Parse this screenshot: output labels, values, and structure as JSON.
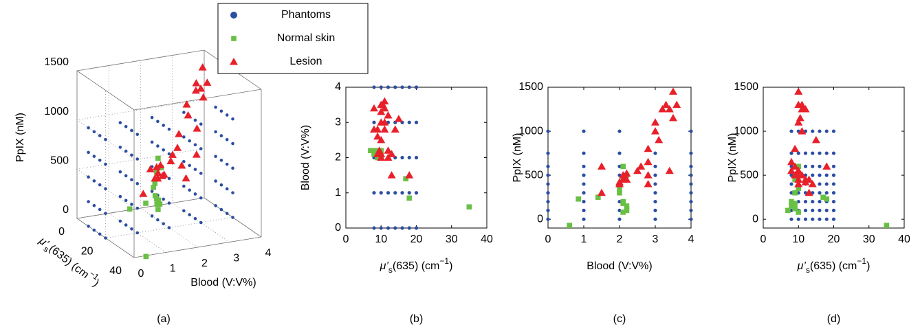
{
  "chart_data": [
    {
      "type": "scatter3d",
      "caption": "(a)",
      "xlabel": [
        "μ’",
        "s",
        "(635) (cm",
        "−1",
        ")"
      ],
      "ylabel": "Blood (V:V%)",
      "zlabel": "PpIX (nM)",
      "xlim": [
        0,
        40
      ],
      "ylim": [
        0,
        4
      ],
      "zlim": [
        0,
        1500
      ],
      "xticks": [
        0,
        20,
        40
      ],
      "yticks": [
        0,
        1,
        2,
        3,
        4
      ],
      "zticks": [
        0,
        500,
        1000,
        1500
      ],
      "grid": true,
      "series": [
        {
          "name": "Phantoms",
          "color": "#2b4ea2",
          "marker": "circle",
          "x": [
            8,
            8,
            8,
            8,
            8,
            8,
            8,
            8,
            8,
            8,
            8,
            8,
            8,
            8,
            8,
            8,
            8,
            8,
            8,
            8,
            8,
            8,
            8,
            8,
            8,
            12,
            12,
            12,
            12,
            12,
            12,
            12,
            12,
            12,
            12,
            12,
            12,
            12,
            12,
            12,
            12,
            12,
            12,
            12,
            12,
            12,
            12,
            12,
            12,
            12,
            16,
            16,
            16,
            16,
            16,
            16,
            16,
            16,
            16,
            16,
            16,
            16,
            16,
            16,
            16,
            16,
            16,
            16,
            16,
            16,
            16,
            16,
            16,
            16,
            16,
            20,
            20,
            20,
            20,
            20,
            20,
            20,
            20,
            20,
            20,
            20,
            20,
            20,
            20,
            20,
            20,
            20,
            20,
            20,
            20,
            20,
            20,
            20,
            20,
            20
          ],
          "y": [
            0,
            0,
            0,
            0,
            0,
            1,
            1,
            1,
            1,
            1,
            2,
            2,
            2,
            2,
            2,
            3,
            3,
            3,
            3,
            3,
            4,
            4,
            4,
            4,
            4,
            0,
            0,
            0,
            0,
            0,
            1,
            1,
            1,
            1,
            1,
            2,
            2,
            2,
            2,
            2,
            3,
            3,
            3,
            3,
            3,
            4,
            4,
            4,
            4,
            4,
            0,
            0,
            0,
            0,
            0,
            1,
            1,
            1,
            1,
            1,
            2,
            2,
            2,
            2,
            2,
            3,
            3,
            3,
            3,
            3,
            4,
            4,
            4,
            4,
            4,
            0,
            0,
            0,
            0,
            0,
            1,
            1,
            1,
            1,
            1,
            2,
            2,
            2,
            2,
            2,
            3,
            3,
            3,
            3,
            3,
            4,
            4,
            4,
            4,
            4
          ],
          "z": [
            0,
            250,
            500,
            750,
            1000,
            0,
            250,
            500,
            750,
            1000,
            0,
            250,
            500,
            750,
            1000,
            0,
            250,
            500,
            750,
            1000,
            0,
            250,
            500,
            750,
            1000,
            0,
            250,
            500,
            750,
            1000,
            0,
            250,
            500,
            750,
            1000,
            0,
            250,
            500,
            750,
            1000,
            0,
            250,
            500,
            750,
            1000,
            0,
            250,
            500,
            750,
            1000,
            0,
            250,
            500,
            750,
            1000,
            0,
            250,
            500,
            750,
            1000,
            0,
            250,
            500,
            750,
            1000,
            0,
            250,
            500,
            750,
            1000,
            0,
            250,
            500,
            750,
            1000,
            0,
            250,
            500,
            750,
            1000,
            0,
            250,
            500,
            750,
            1000,
            0,
            250,
            500,
            750,
            1000,
            0,
            250,
            500,
            750,
            1000,
            0,
            250,
            500,
            750,
            1000
          ]
        },
        {
          "name": "Normal skin",
          "color": "#6abf45",
          "marker": "square",
          "x": [
            7,
            8,
            8,
            9,
            9,
            10,
            10,
            10,
            17,
            18,
            35,
            9,
            10,
            9
          ],
          "y": [
            2.2,
            2.2,
            2.1,
            2.1,
            2.2,
            2.1,
            2.1,
            2.0,
            1.4,
            0.85,
            0.6,
            2.1,
            2.2,
            2.0
          ],
          "z": [
            100,
            150,
            200,
            180,
            120,
            80,
            600,
            350,
            250,
            230,
            -70,
            450,
            500,
            300
          ]
        },
        {
          "name": "Lesion",
          "color": "#e8202a",
          "marker": "triangle",
          "x": [
            10,
            11,
            10,
            12,
            10,
            11,
            15,
            9,
            8,
            9,
            10,
            11,
            12,
            10,
            13,
            14,
            18,
            11,
            9,
            10,
            12,
            8,
            9.5,
            10.5,
            13
          ],
          "y": [
            3.5,
            3.6,
            3.3,
            3.2,
            3.0,
            3.0,
            3.1,
            2.8,
            2.8,
            2.6,
            2.5,
            2.8,
            2.2,
            2.1,
            2.1,
            2.8,
            1.5,
            3.4,
            2.1,
            2.0,
            2.0,
            3.4,
            2.2,
            3.5,
            1.5
          ],
          "z": [
            1450,
            1300,
            1300,
            1250,
            1100,
            1000,
            900,
            800,
            650,
            600,
            550,
            500,
            450,
            450,
            450,
            400,
            600,
            1250,
            500,
            400,
            420,
            550,
            520,
            1150,
            300
          ]
        }
      ]
    },
    {
      "type": "scatter",
      "caption": "(b)",
      "xlabel": [
        "μ’",
        "s",
        "(635) (cm",
        "−1",
        ")"
      ],
      "ylabel": "Blood (V:V%)",
      "xlim": [
        0,
        40
      ],
      "ylim": [
        0,
        4
      ],
      "xticks": [
        0,
        10,
        20,
        30,
        40
      ],
      "yticks": [
        0,
        1,
        2,
        3,
        4
      ],
      "series": [
        {
          "color": "#2b4ea2",
          "marker": "circle",
          "x": [
            8,
            10,
            12,
            14,
            16,
            18,
            20,
            8,
            10,
            12,
            14,
            16,
            18,
            20,
            8,
            10,
            12,
            14,
            16,
            18,
            20,
            8,
            10,
            12,
            14,
            16,
            18,
            20,
            8,
            10,
            12,
            14,
            16,
            18,
            20
          ],
          "y": [
            0,
            0,
            0,
            0,
            0,
            0,
            0,
            1,
            1,
            1,
            1,
            1,
            1,
            1,
            2,
            2,
            2,
            2,
            2,
            2,
            2,
            3,
            3,
            3,
            3,
            3,
            3,
            3,
            4,
            4,
            4,
            4,
            4,
            4,
            4
          ]
        },
        {
          "color": "#6abf45",
          "marker": "square",
          "x": [
            7,
            8,
            8,
            9,
            9,
            10,
            10,
            10,
            17,
            18,
            35,
            9,
            10,
            9
          ],
          "y": [
            2.2,
            2.2,
            2.1,
            2.1,
            2.2,
            2.1,
            2.1,
            2.0,
            1.4,
            0.85,
            0.6,
            2.1,
            2.2,
            2.0
          ]
        },
        {
          "color": "#e8202a",
          "marker": "triangle",
          "x": [
            10,
            11,
            10,
            12,
            10,
            11,
            15,
            9,
            8,
            9,
            10,
            11,
            12,
            10,
            13,
            14,
            18,
            11,
            9,
            10,
            12,
            8,
            9.5,
            10.5,
            13
          ],
          "y": [
            3.5,
            3.6,
            3.3,
            3.2,
            3.0,
            3.0,
            3.1,
            2.8,
            2.8,
            2.6,
            2.5,
            2.8,
            2.2,
            2.1,
            2.1,
            2.8,
            1.5,
            3.4,
            2.1,
            2.0,
            2.0,
            3.4,
            2.2,
            3.5,
            1.5
          ]
        }
      ]
    },
    {
      "type": "scatter",
      "caption": "(c)",
      "xlabel": "Blood (V:V%)",
      "ylabel": "PpIX (nM)",
      "xlim": [
        0,
        4
      ],
      "ylim": [
        -100,
        1500
      ],
      "xticks": [
        0,
        1,
        2,
        3,
        4
      ],
      "yticks": [
        0,
        500,
        1000,
        1500
      ],
      "series": [
        {
          "color": "#2b4ea2",
          "marker": "circle",
          "x": [
            0,
            0,
            0,
            0,
            0,
            0,
            0,
            0,
            0,
            1,
            1,
            1,
            1,
            1,
            1,
            1,
            1,
            1,
            2,
            2,
            2,
            2,
            2,
            2,
            2,
            2,
            2,
            3,
            3,
            3,
            3,
            3,
            3,
            3,
            3,
            3,
            4,
            4,
            4,
            4,
            4,
            4,
            4,
            4,
            4
          ],
          "y": [
            0,
            100,
            200,
            300,
            400,
            500,
            600,
            750,
            1000,
            0,
            100,
            200,
            300,
            400,
            500,
            600,
            750,
            1000,
            0,
            100,
            200,
            300,
            400,
            500,
            600,
            750,
            1000,
            0,
            100,
            200,
            300,
            400,
            500,
            600,
            750,
            1000,
            0,
            100,
            200,
            300,
            400,
            500,
            600,
            750,
            1000
          ]
        },
        {
          "color": "#6abf45",
          "marker": "square",
          "x": [
            2.2,
            2.2,
            2.1,
            2.1,
            2.2,
            2.1,
            2.1,
            2.0,
            1.4,
            0.85,
            0.6,
            2.1,
            2.2,
            2.0
          ],
          "y": [
            100,
            150,
            200,
            180,
            120,
            80,
            600,
            350,
            250,
            230,
            -70,
            450,
            500,
            300
          ]
        },
        {
          "color": "#e8202a",
          "marker": "triangle",
          "x": [
            3.5,
            3.6,
            3.3,
            3.2,
            3.0,
            3.0,
            3.1,
            2.8,
            2.8,
            2.6,
            2.5,
            2.8,
            2.2,
            2.1,
            2.1,
            2.8,
            1.5,
            3.4,
            2.1,
            2.0,
            2.0,
            3.4,
            2.2,
            3.5,
            1.5
          ],
          "y": [
            1450,
            1300,
            1300,
            1250,
            1100,
            1000,
            900,
            800,
            650,
            600,
            550,
            500,
            450,
            450,
            450,
            400,
            600,
            1250,
            500,
            400,
            420,
            550,
            520,
            1150,
            300
          ]
        }
      ]
    },
    {
      "type": "scatter",
      "caption": "(d)",
      "xlabel": [
        "μ’",
        "s",
        "(635) (cm",
        "−1",
        ")"
      ],
      "ylabel": "PpIX (nM)",
      "xlim": [
        0,
        40
      ],
      "ylim": [
        -100,
        1500
      ],
      "xticks": [
        0,
        10,
        20,
        30,
        40
      ],
      "yticks": [
        0,
        500,
        1000,
        1500
      ],
      "series": [
        {
          "color": "#2b4ea2",
          "marker": "circle",
          "x": [
            8,
            8,
            8,
            8,
            8,
            8,
            8,
            8,
            8,
            10,
            10,
            10,
            10,
            10,
            10,
            10,
            10,
            10,
            12,
            12,
            12,
            12,
            12,
            12,
            12,
            12,
            12,
            14,
            14,
            14,
            14,
            14,
            14,
            14,
            14,
            14,
            16,
            16,
            16,
            16,
            16,
            16,
            16,
            16,
            16,
            18,
            18,
            18,
            18,
            18,
            18,
            18,
            18,
            18,
            20,
            20,
            20,
            20,
            20,
            20,
            20,
            20,
            20
          ],
          "y": [
            0,
            100,
            200,
            300,
            400,
            500,
            600,
            750,
            1000,
            0,
            100,
            200,
            300,
            400,
            500,
            600,
            750,
            1000,
            0,
            100,
            200,
            300,
            400,
            500,
            600,
            750,
            1000,
            0,
            100,
            200,
            300,
            400,
            500,
            600,
            750,
            1000,
            0,
            100,
            200,
            300,
            400,
            500,
            600,
            750,
            1000,
            0,
            100,
            200,
            300,
            400,
            500,
            600,
            750,
            1000,
            0,
            100,
            200,
            300,
            400,
            500,
            600,
            750,
            1000
          ]
        },
        {
          "color": "#6abf45",
          "marker": "square",
          "x": [
            7,
            8,
            8,
            9,
            9,
            10,
            10,
            10,
            17,
            18,
            35,
            9,
            10,
            9
          ],
          "y": [
            100,
            150,
            200,
            180,
            120,
            80,
            600,
            350,
            250,
            230,
            -70,
            450,
            500,
            300
          ]
        },
        {
          "color": "#e8202a",
          "marker": "triangle",
          "x": [
            10,
            11,
            10,
            12,
            10,
            11,
            15,
            9,
            8,
            9,
            10,
            11,
            12,
            10,
            13,
            14,
            18,
            11,
            9,
            10,
            12,
            8,
            9.5,
            10.5,
            13
          ],
          "y": [
            1450,
            1300,
            1300,
            1250,
            1100,
            1000,
            900,
            800,
            650,
            600,
            550,
            500,
            450,
            450,
            450,
            400,
            600,
            1250,
            500,
            400,
            420,
            550,
            520,
            1150,
            300
          ]
        }
      ]
    }
  ]
}
